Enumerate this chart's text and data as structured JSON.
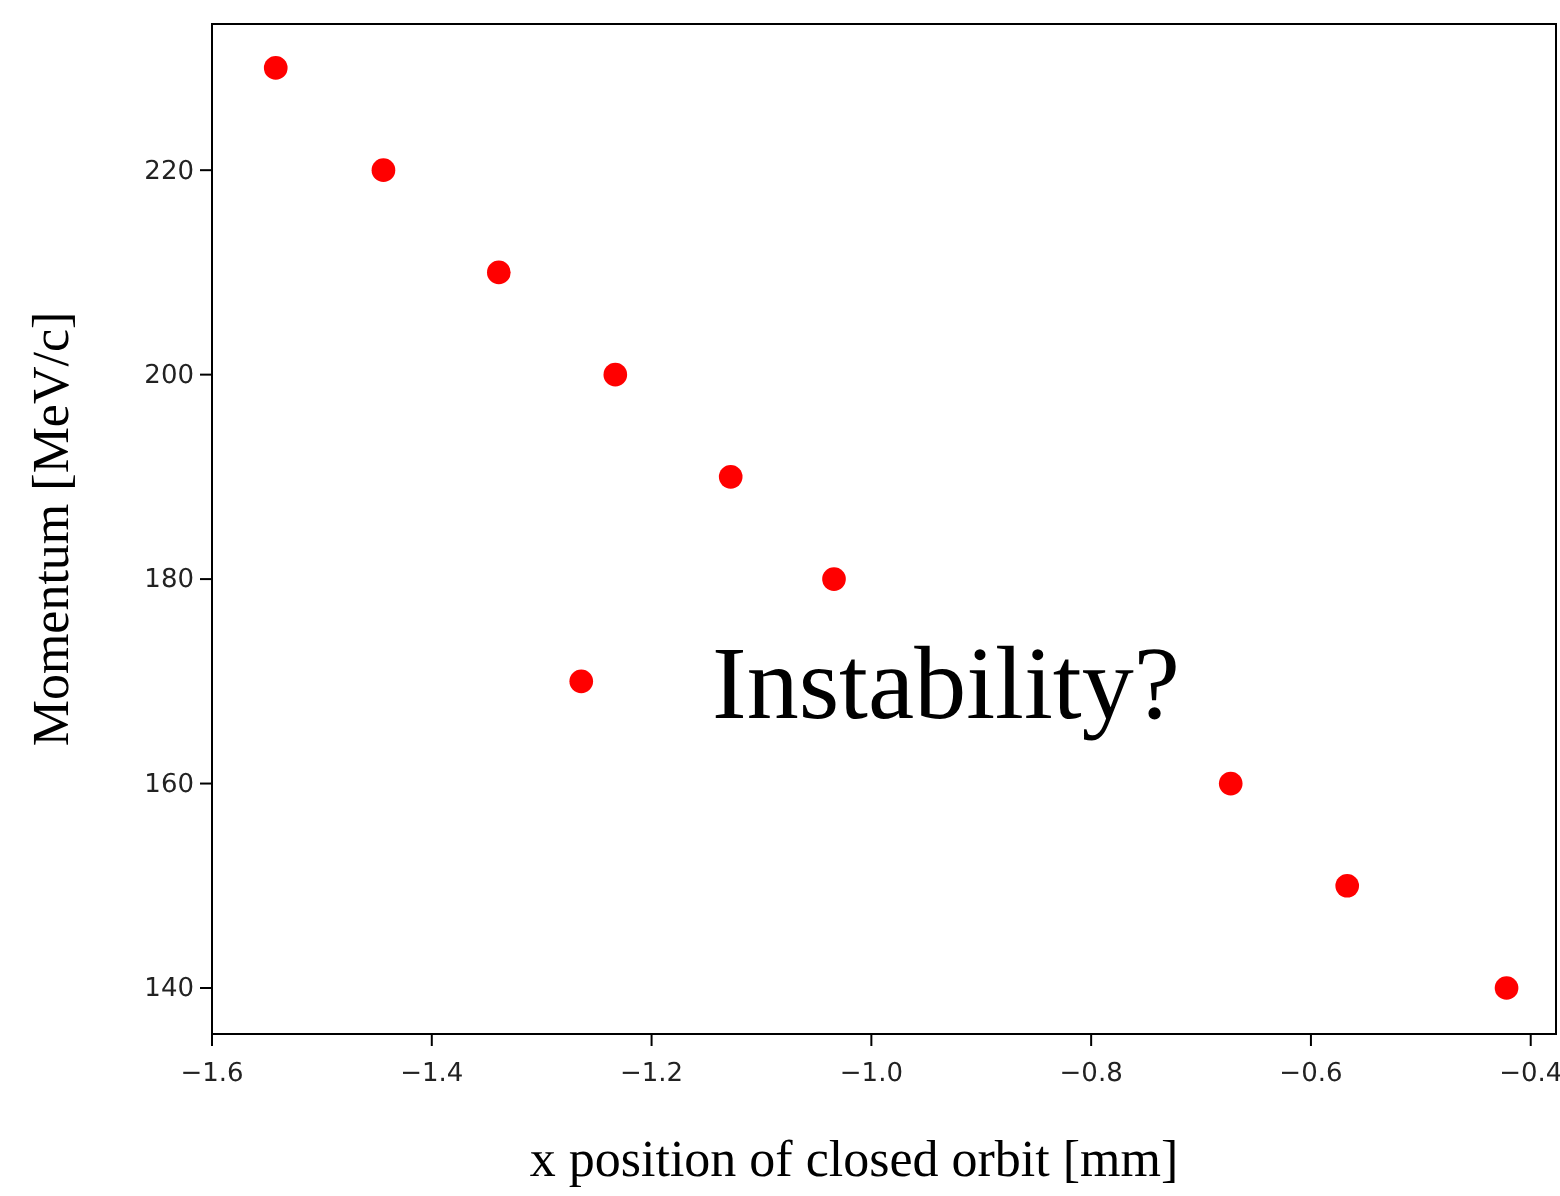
{
  "chart_data": {
    "type": "scatter",
    "xlabel": "x position of closed orbit [mm]",
    "ylabel": "Momentum [MeV/c]",
    "x": [
      -1.542,
      -1.444,
      -1.339,
      -1.233,
      -1.128,
      -1.034,
      -1.264,
      -0.673,
      -0.567,
      -0.422
    ],
    "series": [
      {
        "color": "#ff0000",
        "values": [
          230,
          220,
          210,
          200,
          190,
          180,
          170,
          160,
          150,
          140
        ]
      }
    ],
    "marker": "circle",
    "xlim": [
      -1.6,
      -0.377
    ],
    "ylim": [
      135.5,
      234.3
    ],
    "xticks": [
      {
        "value": -1.6,
        "label": "−1.6"
      },
      {
        "value": -1.4,
        "label": "−1.4"
      },
      {
        "value": -1.2,
        "label": "−1.2"
      },
      {
        "value": -1.0,
        "label": "−1.0"
      },
      {
        "value": -0.8,
        "label": "−0.8"
      },
      {
        "value": -0.6,
        "label": "−0.6"
      },
      {
        "value": -0.4,
        "label": "−0.4"
      }
    ],
    "yticks": [
      140,
      160,
      180,
      200,
      220
    ],
    "annotations": [
      "Instability?"
    ]
  }
}
